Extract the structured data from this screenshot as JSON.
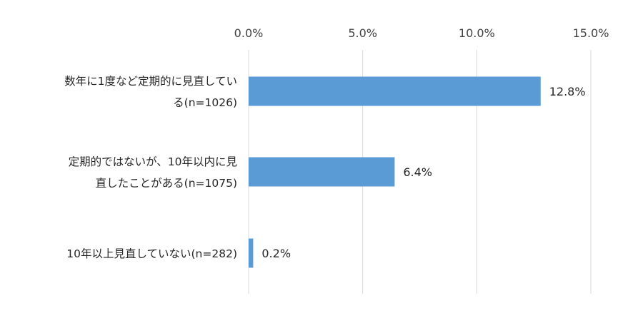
{
  "chart_data": {
    "type": "bar",
    "orientation": "horizontal",
    "title": "",
    "xlabel": "",
    "ylabel": "",
    "xlim": [
      0,
      15
    ],
    "tick_values": [
      0,
      5,
      10,
      15
    ],
    "tick_labels": [
      "0.0%",
      "5.0%",
      "10.0%",
      "15.0%"
    ],
    "axis_position": "top",
    "grid": true,
    "legend": "none",
    "bar_color": "#5b9bd5",
    "categories": [
      [
        "数年に1度など定期的に見直してい",
        "る(n=1026)"
      ],
      [
        "定期的ではないが、10年以内に見",
        "直したことがある(n=1075)"
      ],
      [
        "10年以上見直していない(n=282)"
      ]
    ],
    "values": [
      12.8,
      6.4,
      0.2
    ],
    "data_labels": [
      "12.8%",
      "6.4%",
      "0.2%"
    ]
  }
}
